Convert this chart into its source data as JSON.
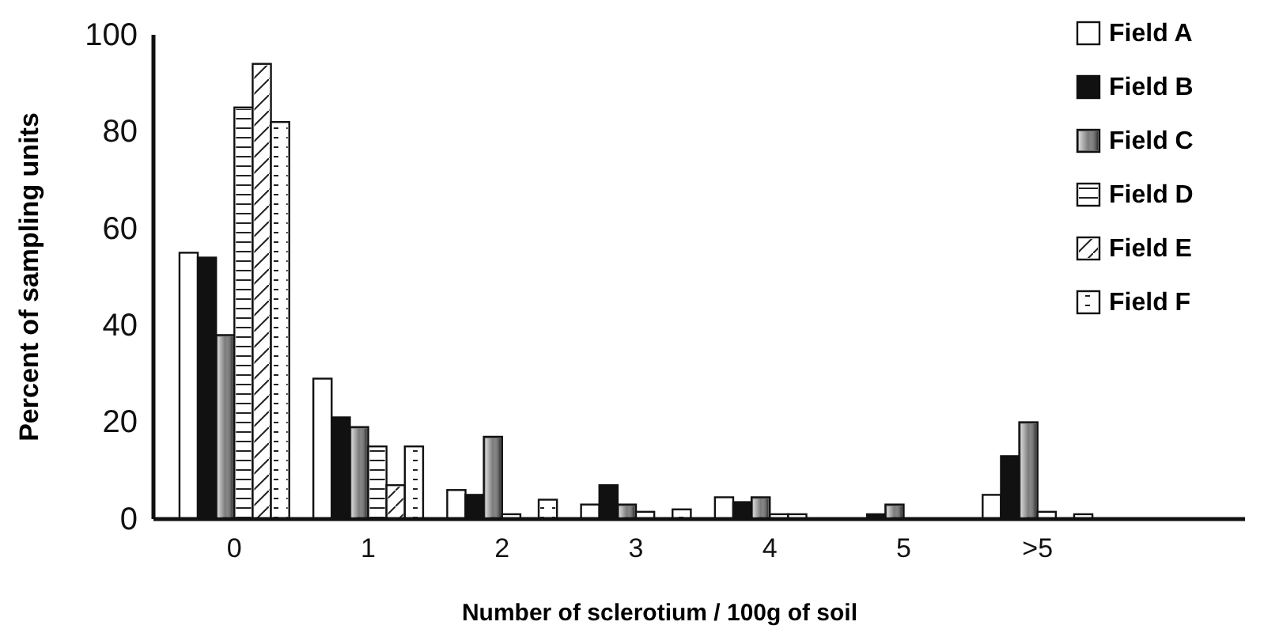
{
  "chart_data": {
    "type": "bar",
    "xlabel": "Number of sclerotium / 100g of soil",
    "ylabel": "Percent of sampling units",
    "categories": [
      "0",
      "1",
      "2",
      "3",
      "4",
      "5",
      ">5"
    ],
    "series": [
      {
        "name": "Field A",
        "color": "#ffffff",
        "values": [
          55,
          29,
          6,
          3,
          4.5,
          0,
          5
        ]
      },
      {
        "name": "Field B",
        "color": "#111111",
        "values": [
          54,
          21,
          5,
          7,
          3.5,
          1,
          13
        ]
      },
      {
        "name": "Field C",
        "color": "#7a7a7a",
        "values": [
          38,
          19,
          17,
          3,
          4.5,
          3,
          20
        ]
      },
      {
        "name": "Field D",
        "color": "#ffffff",
        "values": [
          85,
          15,
          1,
          1.5,
          1,
          0,
          1.5
        ]
      },
      {
        "name": "Field E",
        "color": "#ffffff",
        "values": [
          94,
          7,
          0,
          0,
          1,
          0,
          0
        ]
      },
      {
        "name": "Field F",
        "color": "#ffffff",
        "values": [
          82,
          15,
          4,
          2,
          0,
          0,
          1
        ]
      }
    ],
    "ylim": [
      0,
      100
    ],
    "yticks": [
      0,
      20,
      40,
      60,
      80,
      100
    ],
    "legend": "top right"
  }
}
